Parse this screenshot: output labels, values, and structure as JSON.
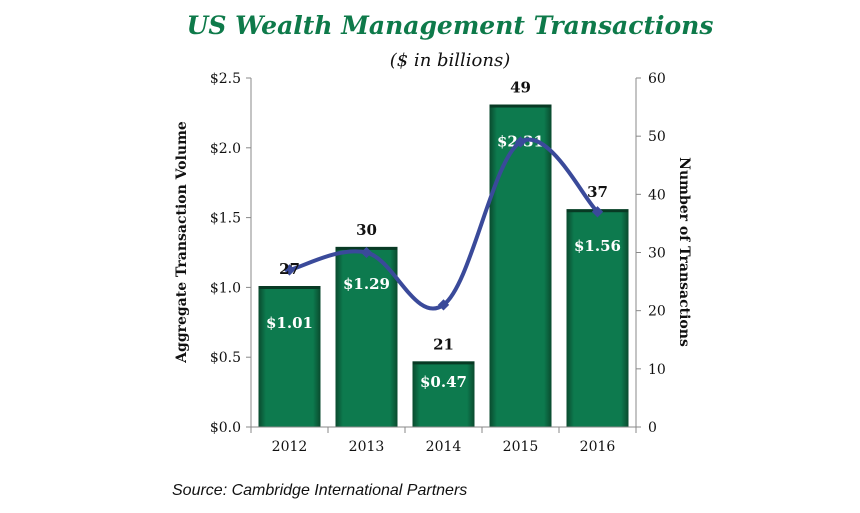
{
  "chart_data": {
    "type": "bar",
    "title": "US Wealth Management Transactions",
    "subtitle": "($ in billions)",
    "categories": [
      "2012",
      "2013",
      "2014",
      "2015",
      "2016"
    ],
    "series": [
      {
        "values": [
          1.01,
          1.29,
          0.47,
          2.31,
          1.56
        ],
        "labels": [
          "$1.01",
          "$1.29",
          "$0.47",
          "$2.31",
          "$1.56"
        ],
        "axis": "left",
        "color": "#0d7a4e"
      },
      {
        "values": [
          27,
          30,
          21,
          49,
          37
        ],
        "labels": [
          "27",
          "30",
          "21",
          "49",
          "37"
        ],
        "axis": "right",
        "color": "#3a4a9a"
      }
    ],
    "ylabel": "Aggregate Transaction Volume",
    "y2label": "Number of Transactions",
    "ylim": [
      0,
      2.5
    ],
    "y2lim": [
      0,
      60
    ],
    "yticks": [
      "$0.0",
      "$0.5",
      "$1.0",
      "$1.5",
      "$2.0",
      "$2.5"
    ],
    "y2ticks": [
      "0",
      "10",
      "20",
      "30",
      "40",
      "50",
      "60"
    ],
    "grid": false,
    "source": "Source: Cambridge International Partners"
  }
}
